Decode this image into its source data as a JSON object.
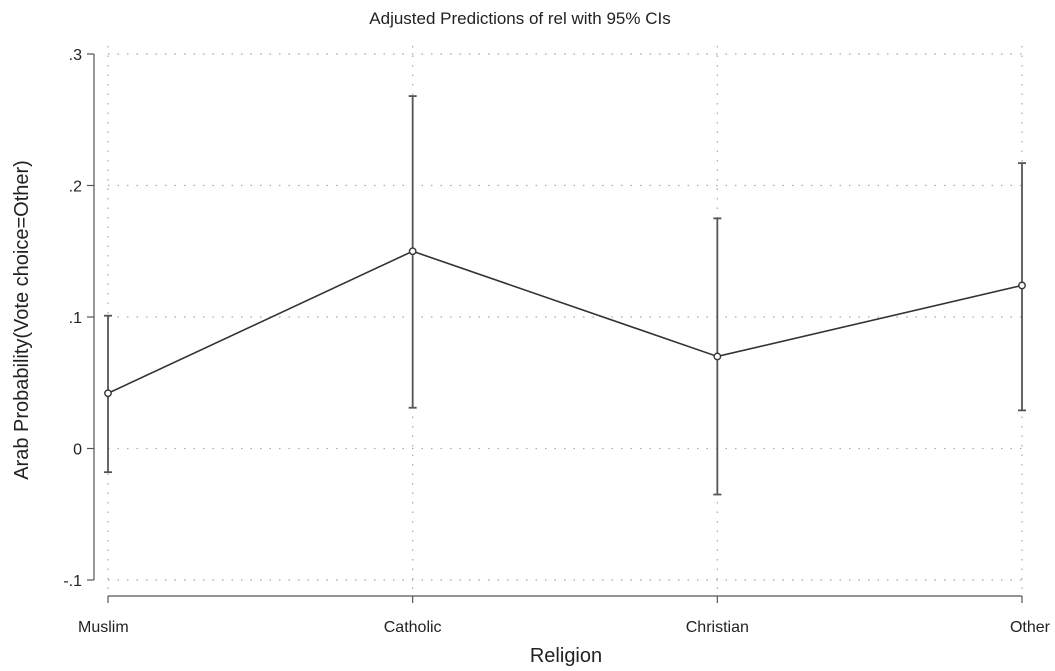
{
  "chart_data": {
    "type": "line",
    "title": "Adjusted Predictions of rel with 95% CIs",
    "xlabel": "Religion",
    "ylabel": "Arab Probability(Vote choice=Other)",
    "categories": [
      "Muslim",
      "Catholic",
      "Christian",
      "Other"
    ],
    "values": [
      0.042,
      0.15,
      0.07,
      0.124
    ],
    "ci_lower": [
      -0.018,
      0.031,
      -0.035,
      0.029
    ],
    "ci_upper": [
      0.101,
      0.268,
      0.175,
      0.217
    ],
    "ylim": [
      -0.1,
      0.3
    ],
    "yticks": [
      -0.1,
      0,
      0.1,
      0.2,
      0.3
    ],
    "ytick_labels": [
      "-.1",
      "0",
      ".1",
      ".2",
      ".3"
    ],
    "grid": true,
    "legend": "none",
    "colors": {
      "line": "#333333",
      "ci": "#555555",
      "grid": "#a8a8a8"
    }
  }
}
